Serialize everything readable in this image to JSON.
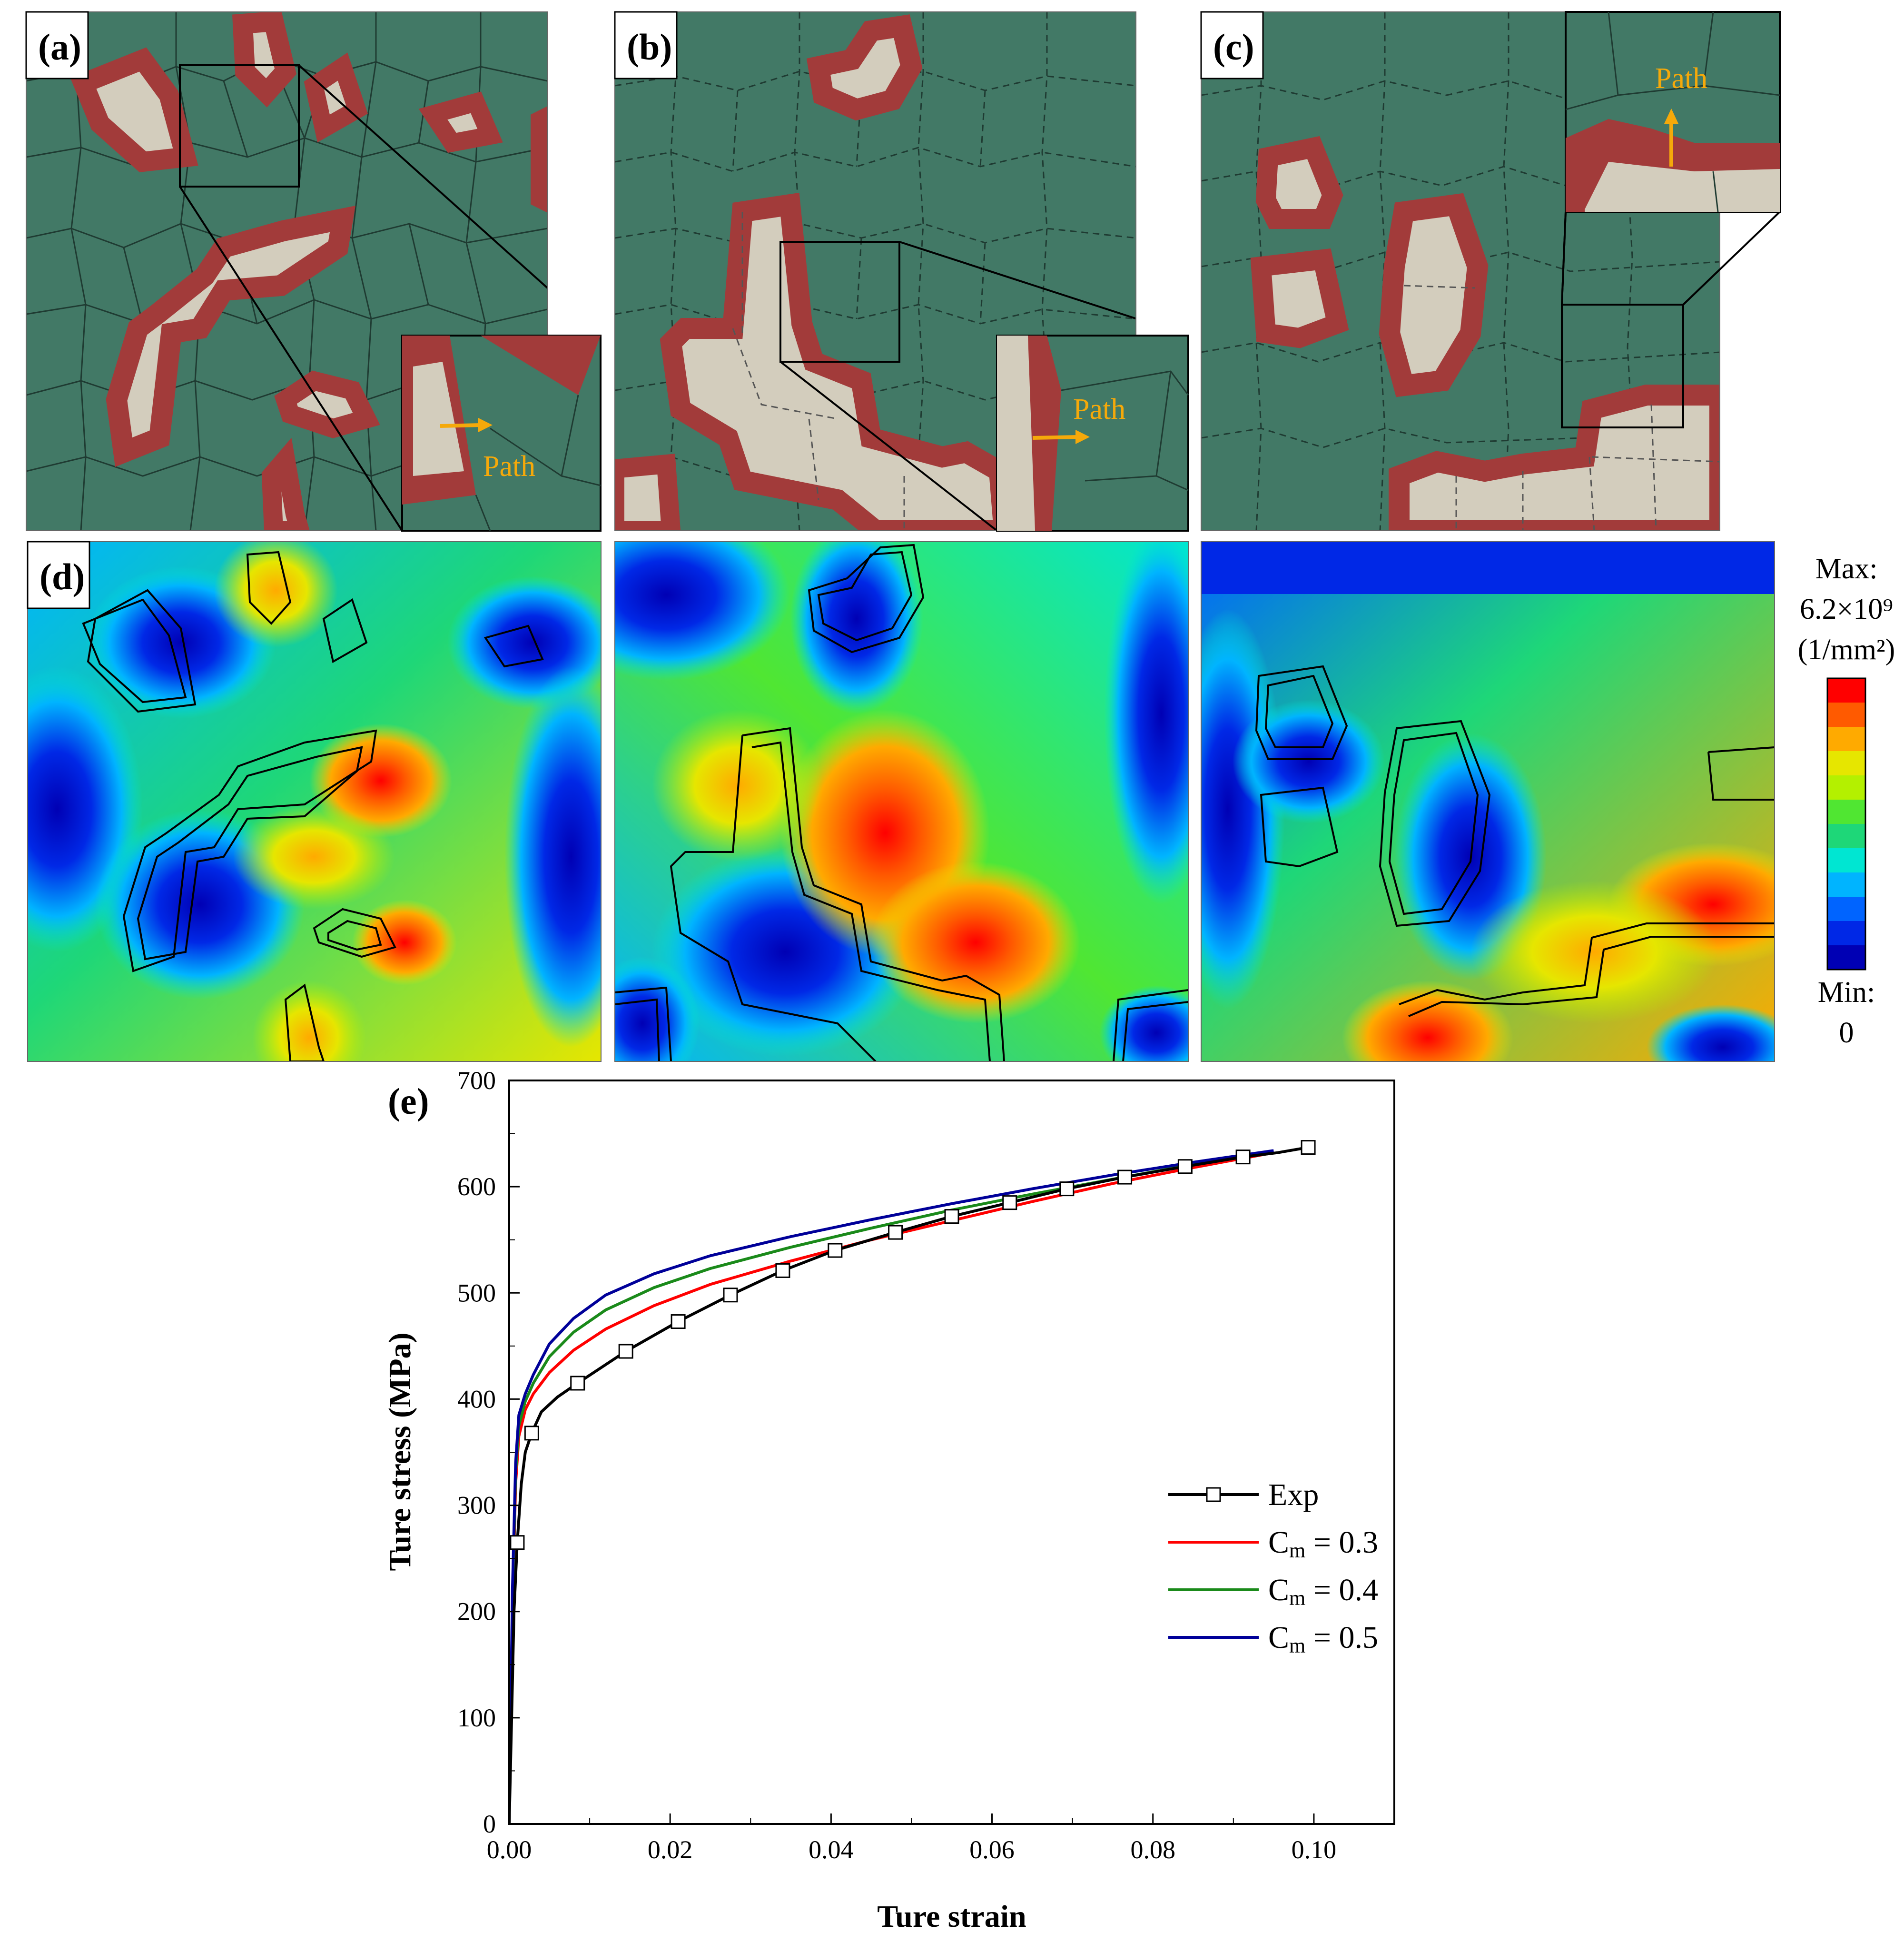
{
  "figure": {
    "panel_labels": [
      "(a)",
      "(b)",
      "(c)",
      "(d)",
      "(e)"
    ],
    "path_label": "Path",
    "colorbar": {
      "max_label": "Max:",
      "max_value": "6.2×10⁹",
      "unit": "(1/mm²)",
      "min_label": "Min:",
      "min_value": "0",
      "colors": [
        "#ff0000",
        "#ff5a00",
        "#ffaa00",
        "#e6e600",
        "#b4f000",
        "#50e632",
        "#1ed778",
        "#00e6d2",
        "#00b4ff",
        "#0064ff",
        "#0028e6",
        "#0000b4"
      ]
    },
    "microstructure_colors": {
      "matrix": "#427966",
      "particle": "#d3cdbd",
      "interface": "#a23b3a",
      "arrow": "#f5a90a"
    }
  },
  "chart_data": {
    "type": "line",
    "xlabel": "Ture strain",
    "ylabel": "Ture stress (MPa)",
    "xlim": [
      0,
      0.11
    ],
    "ylim": [
      0,
      700
    ],
    "x_ticks": [
      "0.00",
      "0.02",
      "0.04",
      "0.06",
      "0.08",
      "0.10"
    ],
    "y_ticks": [
      "0",
      "100",
      "200",
      "300",
      "400",
      "500",
      "600",
      "700"
    ],
    "legend_position": "lower-right",
    "series": [
      {
        "name": "Exp",
        "color": "#000000",
        "marker": "square",
        "x": [
          0,
          0.0003,
          0.0006,
          0.001,
          0.0015,
          0.002,
          0.0028,
          0.004,
          0.006,
          0.0085,
          0.0145,
          0.021,
          0.0275,
          0.034,
          0.0405,
          0.048,
          0.055,
          0.0622,
          0.0693,
          0.0765,
          0.084,
          0.0912,
          0.0955,
          0.0993
        ],
        "y": [
          0,
          100,
          200,
          265,
          320,
          350,
          368,
          388,
          402,
          415,
          445,
          473,
          498,
          521,
          540,
          557,
          572,
          585,
          598,
          609,
          619,
          628,
          632,
          637
        ],
        "markers_x": [
          0.001,
          0.0028,
          0.0085,
          0.0145,
          0.021,
          0.0275,
          0.034,
          0.0405,
          0.048,
          0.055,
          0.0622,
          0.0693,
          0.0765,
          0.084,
          0.0912,
          0.0993
        ],
        "markers_y": [
          265,
          368,
          415,
          445,
          473,
          498,
          521,
          540,
          557,
          572,
          585,
          598,
          609,
          619,
          628,
          637
        ]
      },
      {
        "name": "Cm = 0.3",
        "name_main": "C",
        "name_sub": "m",
        "name_rest": " = 0.3",
        "color": "#ff0000",
        "x": [
          0,
          0.0004,
          0.0008,
          0.0012,
          0.002,
          0.003,
          0.005,
          0.008,
          0.012,
          0.018,
          0.025,
          0.035,
          0.045,
          0.055,
          0.065,
          0.075,
          0.085,
          0.095
        ],
        "y": [
          0,
          200,
          320,
          365,
          390,
          405,
          425,
          446,
          466,
          488,
          508,
          530,
          550,
          568,
          586,
          603,
          618,
          632
        ]
      },
      {
        "name": "Cm = 0.4",
        "name_main": "C",
        "name_sub": "m",
        "name_rest": " = 0.4",
        "color": "#1a8a1a",
        "x": [
          0,
          0.0004,
          0.0008,
          0.0012,
          0.002,
          0.003,
          0.005,
          0.008,
          0.012,
          0.018,
          0.025,
          0.035,
          0.045,
          0.055,
          0.065,
          0.075,
          0.085,
          0.095
        ],
        "y": [
          0,
          210,
          330,
          375,
          398,
          415,
          440,
          463,
          484,
          505,
          523,
          543,
          561,
          578,
          593,
          607,
          621,
          633
        ]
      },
      {
        "name": "Cm = 0.5",
        "name_main": "C",
        "name_sub": "m",
        "name_rest": " = 0.5",
        "color": "#000099",
        "x": [
          0,
          0.0004,
          0.0008,
          0.0012,
          0.002,
          0.003,
          0.005,
          0.008,
          0.012,
          0.018,
          0.025,
          0.035,
          0.045,
          0.055,
          0.065,
          0.075,
          0.085,
          0.095
        ],
        "y": [
          0,
          220,
          340,
          385,
          405,
          423,
          452,
          476,
          498,
          518,
          535,
          553,
          569,
          584,
          598,
          611,
          623,
          634
        ]
      }
    ]
  }
}
